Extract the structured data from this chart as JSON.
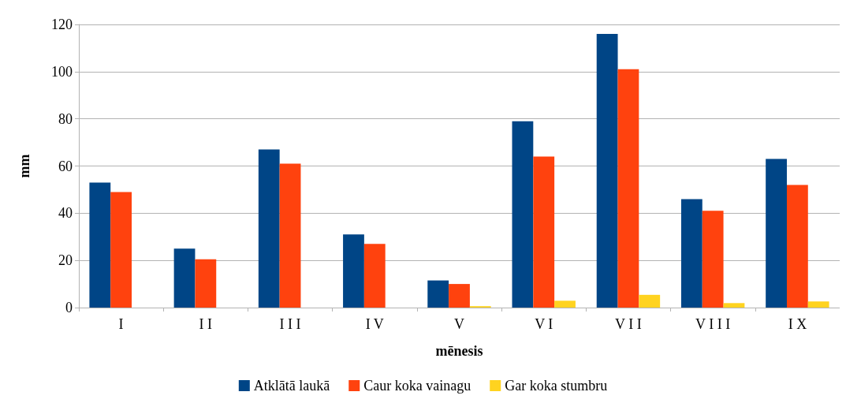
{
  "chart_data": {
    "type": "bar",
    "xlabel": "mēnesis",
    "ylabel": "mm",
    "categories": [
      "I",
      "I I",
      "I I I",
      "I V",
      "V",
      "V I",
      "V I I",
      "V I I I",
      "I X"
    ],
    "series": [
      {
        "name": "Atklātā laukā",
        "color": "#004586",
        "values": [
          53,
          25,
          67,
          31,
          11.5,
          79,
          116,
          46,
          63
        ]
      },
      {
        "name": "Caur koka vainagu",
        "color": "#ff420e",
        "values": [
          49,
          20.5,
          61,
          27,
          10,
          64,
          101,
          41,
          52
        ]
      },
      {
        "name": "Gar koka stumbru",
        "color": "#ffd320",
        "values": [
          0,
          0,
          0,
          0,
          0.6,
          2.9,
          5.4,
          1.9,
          2.6
        ]
      }
    ],
    "ylim": [
      0,
      120
    ],
    "yticks": [
      0,
      20,
      40,
      60,
      80,
      100,
      120
    ],
    "grid": "y",
    "legend": "bottom"
  }
}
